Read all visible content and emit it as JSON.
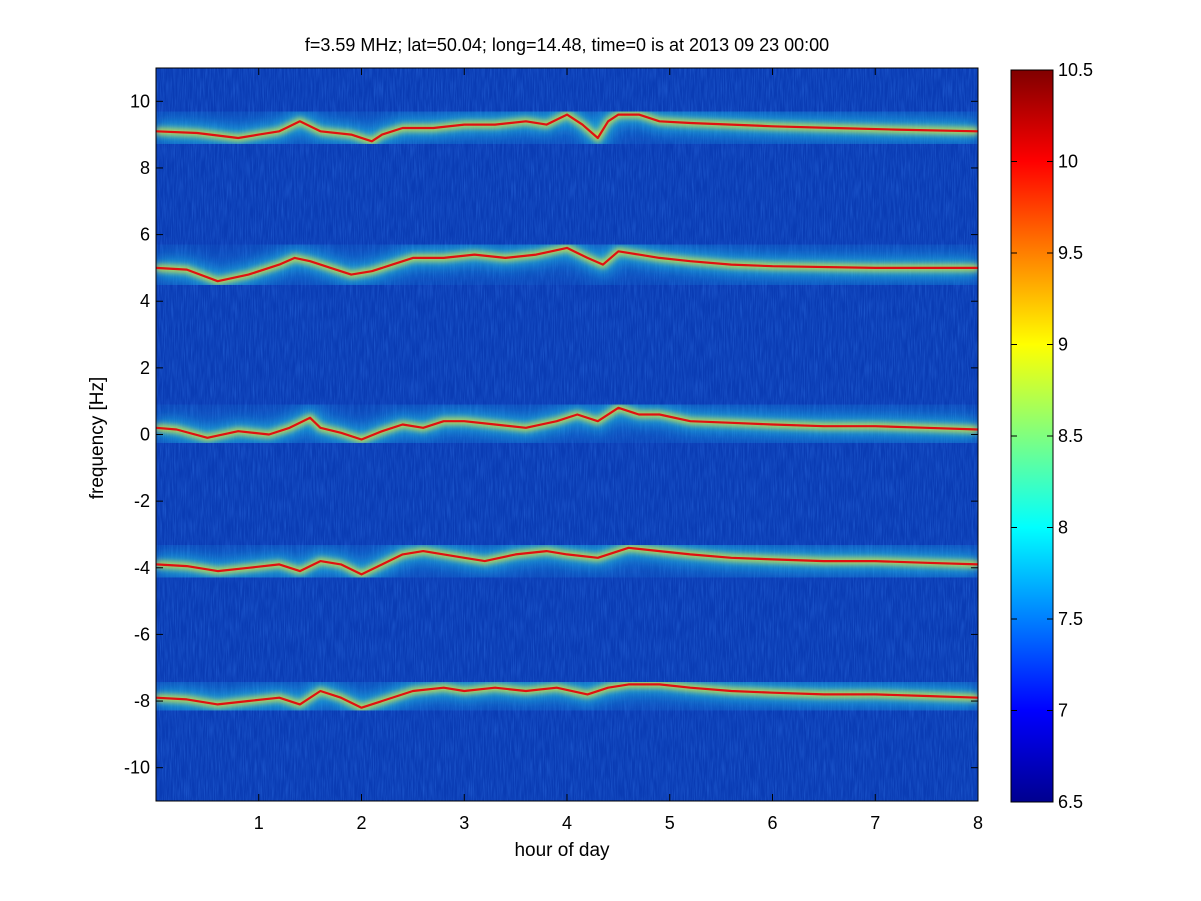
{
  "chart_data": {
    "type": "heatmap",
    "title": "f=3.59 MHz;  lat=50.04; long=14.48, time=0 is at 2013 09 23 00:00",
    "xlabel": "hour of day",
    "ylabel": "frequency [Hz]",
    "xlim": [
      0,
      8
    ],
    "ylim": [
      -11,
      11
    ],
    "x_ticks": [
      1,
      2,
      3,
      4,
      5,
      6,
      7,
      8
    ],
    "y_ticks": [
      -10,
      -8,
      -6,
      -4,
      -2,
      0,
      2,
      4,
      6,
      8,
      10
    ],
    "colorbar": {
      "range": [
        6.5,
        10.5
      ],
      "ticks": [
        6.5,
        7,
        7.5,
        8,
        8.5,
        9,
        9.5,
        10,
        10.5
      ],
      "colormap": "jet"
    },
    "background_color": "#0a3cb4",
    "traces": [
      {
        "points": [
          [
            0,
            9.1
          ],
          [
            0.4,
            9.05
          ],
          [
            0.8,
            8.9
          ],
          [
            1.0,
            9.0
          ],
          [
            1.2,
            9.1
          ],
          [
            1.4,
            9.4
          ],
          [
            1.6,
            9.1
          ],
          [
            1.9,
            9.0
          ],
          [
            2.1,
            8.8
          ],
          [
            2.2,
            9.0
          ],
          [
            2.4,
            9.2
          ],
          [
            2.7,
            9.2
          ],
          [
            3.0,
            9.3
          ],
          [
            3.3,
            9.3
          ],
          [
            3.6,
            9.4
          ],
          [
            3.8,
            9.3
          ],
          [
            4.0,
            9.6
          ],
          [
            4.15,
            9.3
          ],
          [
            4.3,
            8.9
          ],
          [
            4.4,
            9.4
          ],
          [
            4.5,
            9.6
          ],
          [
            4.7,
            9.6
          ],
          [
            4.9,
            9.4
          ],
          [
            5.2,
            9.35
          ],
          [
            5.6,
            9.3
          ],
          [
            6.0,
            9.25
          ],
          [
            6.6,
            9.2
          ],
          [
            7.2,
            9.15
          ],
          [
            8.0,
            9.1
          ]
        ]
      },
      {
        "points": [
          [
            0,
            5.0
          ],
          [
            0.3,
            4.95
          ],
          [
            0.6,
            4.6
          ],
          [
            0.9,
            4.8
          ],
          [
            1.2,
            5.1
          ],
          [
            1.35,
            5.3
          ],
          [
            1.5,
            5.2
          ],
          [
            1.7,
            5.0
          ],
          [
            1.9,
            4.8
          ],
          [
            2.1,
            4.9
          ],
          [
            2.3,
            5.1
          ],
          [
            2.5,
            5.3
          ],
          [
            2.8,
            5.3
          ],
          [
            3.1,
            5.4
          ],
          [
            3.4,
            5.3
          ],
          [
            3.7,
            5.4
          ],
          [
            4.0,
            5.6
          ],
          [
            4.2,
            5.3
          ],
          [
            4.35,
            5.1
          ],
          [
            4.5,
            5.5
          ],
          [
            4.7,
            5.4
          ],
          [
            4.9,
            5.3
          ],
          [
            5.2,
            5.2
          ],
          [
            5.6,
            5.1
          ],
          [
            6.0,
            5.05
          ],
          [
            7.0,
            5.0
          ],
          [
            8.0,
            5.0
          ]
        ]
      },
      {
        "points": [
          [
            0,
            0.2
          ],
          [
            0.2,
            0.15
          ],
          [
            0.5,
            -0.1
          ],
          [
            0.8,
            0.1
          ],
          [
            1.1,
            0.0
          ],
          [
            1.3,
            0.2
          ],
          [
            1.5,
            0.5
          ],
          [
            1.6,
            0.2
          ],
          [
            1.8,
            0.05
          ],
          [
            2.0,
            -0.15
          ],
          [
            2.2,
            0.1
          ],
          [
            2.4,
            0.3
          ],
          [
            2.6,
            0.2
          ],
          [
            2.8,
            0.4
          ],
          [
            3.0,
            0.4
          ],
          [
            3.3,
            0.3
          ],
          [
            3.6,
            0.2
          ],
          [
            3.9,
            0.4
          ],
          [
            4.1,
            0.6
          ],
          [
            4.3,
            0.4
          ],
          [
            4.5,
            0.8
          ],
          [
            4.7,
            0.6
          ],
          [
            4.9,
            0.6
          ],
          [
            5.2,
            0.4
          ],
          [
            5.6,
            0.35
          ],
          [
            6.0,
            0.3
          ],
          [
            6.5,
            0.25
          ],
          [
            7.0,
            0.25
          ],
          [
            7.5,
            0.2
          ],
          [
            8.0,
            0.15
          ]
        ]
      },
      {
        "points": [
          [
            0,
            -3.9
          ],
          [
            0.3,
            -3.95
          ],
          [
            0.6,
            -4.1
          ],
          [
            0.9,
            -4.0
          ],
          [
            1.2,
            -3.9
          ],
          [
            1.4,
            -4.1
          ],
          [
            1.6,
            -3.8
          ],
          [
            1.8,
            -3.9
          ],
          [
            2.0,
            -4.2
          ],
          [
            2.2,
            -3.9
          ],
          [
            2.4,
            -3.6
          ],
          [
            2.6,
            -3.5
          ],
          [
            2.8,
            -3.6
          ],
          [
            3.0,
            -3.7
          ],
          [
            3.2,
            -3.8
          ],
          [
            3.5,
            -3.6
          ],
          [
            3.8,
            -3.5
          ],
          [
            4.0,
            -3.6
          ],
          [
            4.3,
            -3.7
          ],
          [
            4.6,
            -3.4
          ],
          [
            4.9,
            -3.5
          ],
          [
            5.2,
            -3.6
          ],
          [
            5.6,
            -3.7
          ],
          [
            6.0,
            -3.75
          ],
          [
            6.5,
            -3.8
          ],
          [
            7.0,
            -3.8
          ],
          [
            7.5,
            -3.85
          ],
          [
            8.0,
            -3.9
          ]
        ]
      },
      {
        "points": [
          [
            0,
            -7.9
          ],
          [
            0.3,
            -7.95
          ],
          [
            0.6,
            -8.1
          ],
          [
            0.9,
            -8.0
          ],
          [
            1.2,
            -7.9
          ],
          [
            1.4,
            -8.1
          ],
          [
            1.6,
            -7.7
          ],
          [
            1.8,
            -7.9
          ],
          [
            2.0,
            -8.2
          ],
          [
            2.2,
            -8.0
          ],
          [
            2.5,
            -7.7
          ],
          [
            2.8,
            -7.6
          ],
          [
            3.0,
            -7.7
          ],
          [
            3.3,
            -7.6
          ],
          [
            3.6,
            -7.7
          ],
          [
            3.9,
            -7.6
          ],
          [
            4.2,
            -7.8
          ],
          [
            4.4,
            -7.6
          ],
          [
            4.6,
            -7.5
          ],
          [
            4.9,
            -7.5
          ],
          [
            5.2,
            -7.6
          ],
          [
            5.6,
            -7.7
          ],
          [
            6.0,
            -7.75
          ],
          [
            6.5,
            -7.8
          ],
          [
            7.0,
            -7.8
          ],
          [
            7.5,
            -7.85
          ],
          [
            8.0,
            -7.9
          ]
        ]
      }
    ]
  }
}
